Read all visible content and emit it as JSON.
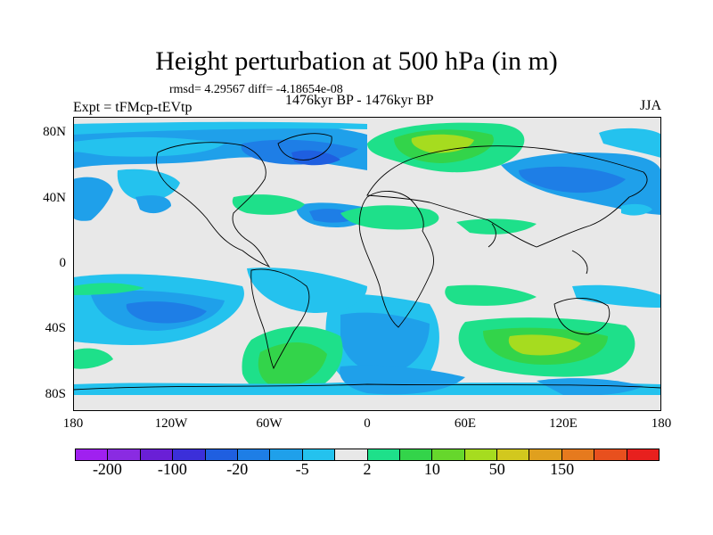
{
  "title": "Height perturbation at 500 hPa (in m)",
  "stats": "rmsd= 4.29567 diff= -4.18654e-08",
  "experiment": "Expt = tFMcp-tEVtp",
  "period": "1476kyr BP - 1476kyr BP",
  "season": "JJA",
  "map": {
    "projection": "cylindrical equidistant",
    "lon_range": [
      -180,
      180
    ],
    "lat_range": [
      -90,
      90
    ],
    "lon_ticks": [
      "180",
      "120W",
      "60W",
      "0",
      "60E",
      "120E",
      "180"
    ],
    "lat_ticks": [
      "80N",
      "40N",
      "0",
      "40S",
      "80S"
    ],
    "background_color": "#e8e8e8"
  },
  "colorbar": {
    "colors": [
      "#a020f0",
      "#8a2be2",
      "#6a1fd6",
      "#3b2fd9",
      "#1f5fe0",
      "#1e7ee6",
      "#1fa0ea",
      "#24c2ee",
      "#e8e8e8",
      "#1ee08a",
      "#33d44a",
      "#66d72c",
      "#a6dc1f",
      "#d2c81e",
      "#e0a01e",
      "#e67a1e",
      "#e8501e",
      "#e8201e"
    ],
    "labels": [
      {
        "text": "-200",
        "index": 1
      },
      {
        "text": "-100",
        "index": 3
      },
      {
        "text": "-20",
        "index": 5
      },
      {
        "text": "-5",
        "index": 7
      },
      {
        "text": "2",
        "index": 9
      },
      {
        "text": "10",
        "index": 11
      },
      {
        "text": "50",
        "index": 13
      },
      {
        "text": "150",
        "index": 15
      }
    ]
  }
}
